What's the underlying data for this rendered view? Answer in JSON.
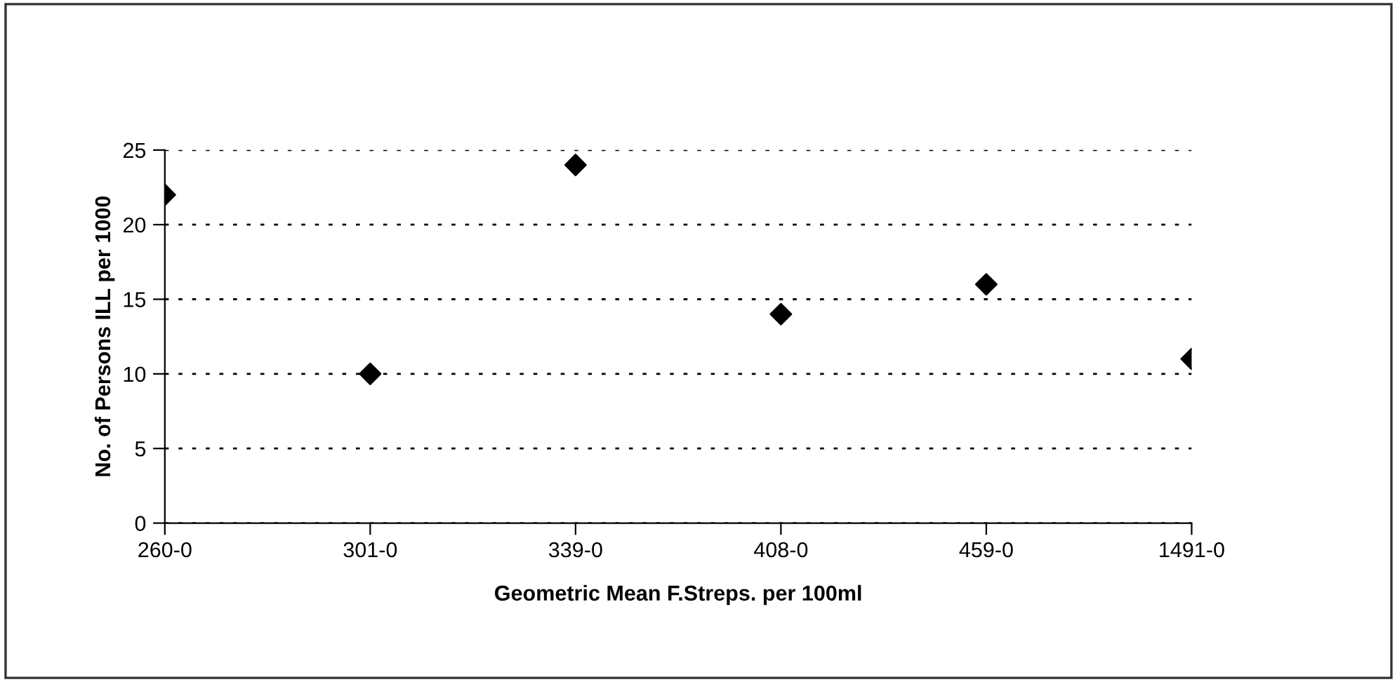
{
  "chart_data": {
    "type": "scatter",
    "xlabel": "Geometric Mean F.Streps. per 100ml",
    "ylabel": "No. of Persons ILL per 1000",
    "categories": [
      "260-0",
      "301-0",
      "339-0",
      "408-0",
      "459-0",
      "1491-0"
    ],
    "series": [
      {
        "color": "#000000",
        "values": [
          22,
          10,
          24,
          14,
          16,
          11
        ]
      }
    ],
    "ylim": [
      0,
      25
    ],
    "yticks": [
      0,
      5,
      10,
      15,
      20,
      25
    ],
    "grid": "y",
    "marker": "diamond",
    "legend": false
  }
}
